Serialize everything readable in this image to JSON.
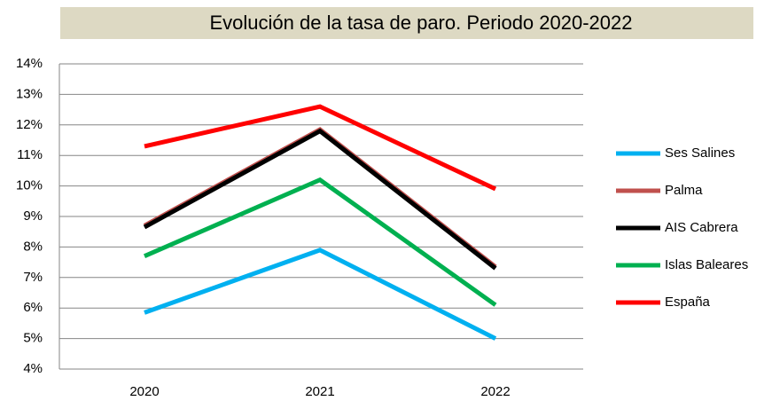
{
  "chart_data": {
    "type": "line",
    "title": "Evolución de la tasa  de paro. Periodo 2020-2022",
    "categories": [
      "2020",
      "2021",
      "2022"
    ],
    "series": [
      {
        "name": "Ses Salines",
        "color": "#00b0f0",
        "values": [
          5.85,
          7.9,
          5.0
        ]
      },
      {
        "name": "Palma",
        "color": "#c0504d",
        "values": [
          8.7,
          11.85,
          7.35
        ]
      },
      {
        "name": "AIS Cabrera",
        "color": "#000000",
        "values": [
          8.65,
          11.8,
          7.3
        ]
      },
      {
        "name": "Islas Baleares",
        "color": "#00b050",
        "values": [
          7.7,
          10.2,
          6.1
        ]
      },
      {
        "name": "España",
        "color": "#ff0000",
        "values": [
          11.3,
          12.6,
          9.9
        ]
      }
    ],
    "ylim": [
      4,
      14
    ],
    "yticks": [
      {
        "value": 4,
        "label": "4%"
      },
      {
        "value": 5,
        "label": "5%"
      },
      {
        "value": 6,
        "label": "6%"
      },
      {
        "value": 7,
        "label": "7%"
      },
      {
        "value": 8,
        "label": "8%"
      },
      {
        "value": 9,
        "label": "9%"
      },
      {
        "value": 10,
        "label": "10%"
      },
      {
        "value": 11,
        "label": "11%"
      },
      {
        "value": 12,
        "label": "12%"
      },
      {
        "value": 13,
        "label": "13%"
      },
      {
        "value": 14,
        "label": "14%"
      }
    ],
    "grid": true,
    "legend": "right"
  }
}
